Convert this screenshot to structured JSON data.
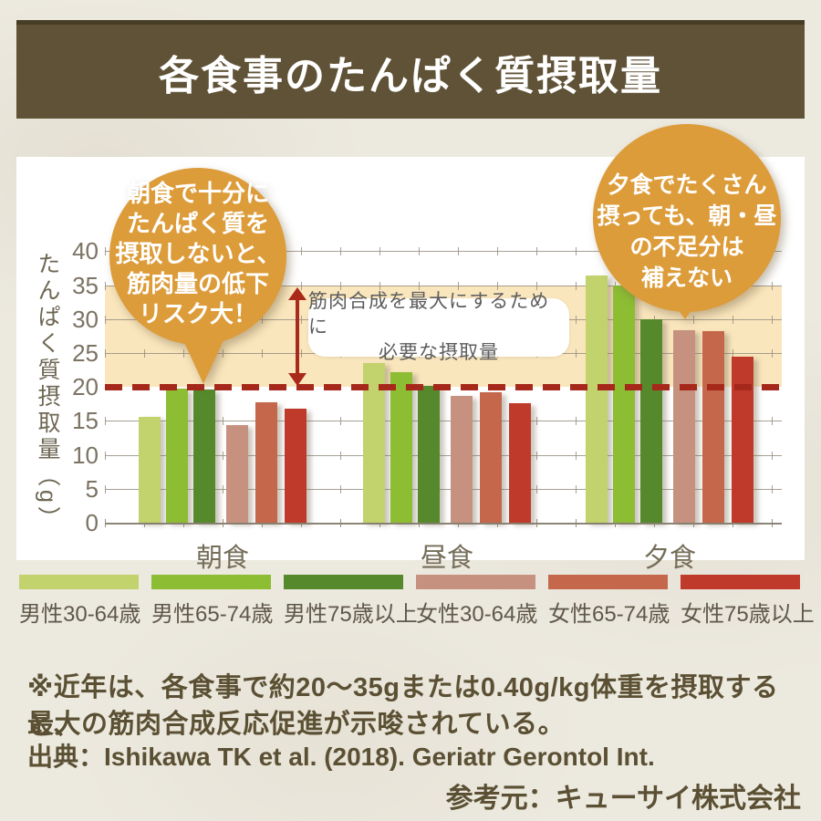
{
  "page": {
    "title": "各食事のたんぱく質摂取量",
    "banner_color": "#5f5236",
    "background_color": "#ece9df",
    "card_color": "#ffffff"
  },
  "chart_data": {
    "type": "bar",
    "title": "各食事のたんぱく質摂取量",
    "categories": [
      "朝食",
      "昼食",
      "夕食"
    ],
    "series": [
      {
        "name": "男性30-64歳",
        "color": "#c2d26c",
        "values": [
          15.6,
          23.5,
          36.4
        ]
      },
      {
        "name": "男性65-74歳",
        "color": "#8cbd33",
        "values": [
          19.8,
          22.2,
          35.0
        ]
      },
      {
        "name": "男性75歳以上",
        "color": "#55892c",
        "values": [
          19.6,
          20.2,
          30.0
        ]
      },
      {
        "name": "女性30-64歳",
        "color": "#c79180",
        "values": [
          14.4,
          18.7,
          28.3
        ]
      },
      {
        "name": "女性65-74歳",
        "color": "#c4674b",
        "values": [
          17.7,
          19.2,
          28.2
        ]
      },
      {
        "name": "女性75歳以上",
        "color": "#bf3a2b",
        "values": [
          16.8,
          17.6,
          24.4
        ]
      }
    ],
    "xlabel": "",
    "ylabel": "たんぱく質摂取量（g）",
    "ylim": [
      0,
      40
    ],
    "yticks": [
      0,
      5,
      10,
      15,
      20,
      25,
      30,
      35,
      40
    ],
    "grid": true,
    "legend_position": "bottom",
    "reference_line": {
      "value": 20,
      "style": "dashed",
      "color": "#a6281a"
    },
    "reference_band": {
      "from": 20,
      "to": 35,
      "color": "#fae6bd",
      "label": "筋肉合成を最大にするために必要な摂取量"
    }
  },
  "annotations": {
    "left_balloon": {
      "color": "#dd9c3a",
      "lines": [
        "朝食で十分に",
        "たんぱく質を",
        "摂取しないと、",
        "筋肉量の低下",
        "リスク大！"
      ]
    },
    "right_balloon": {
      "color": "#dd9c3a",
      "lines": [
        "夕食でたくさん",
        "摂っても、朝・昼",
        "の不足分は",
        "補えない"
      ]
    },
    "band_note_line1": "筋肉合成を最大にするために",
    "band_note_line2": "必要な摂取量"
  },
  "footer": {
    "note_line1": "※近年は、各食事で約20～35gまたは0.40g/kg体重を摂取すると、",
    "note_line2": "最大の筋肉合成反応促進が示唆されている。",
    "source": "出典：Ishikawa TK et al. (2018). Geriatr Gerontol Int.",
    "reference": "参考元：キューサイ株式会社"
  }
}
